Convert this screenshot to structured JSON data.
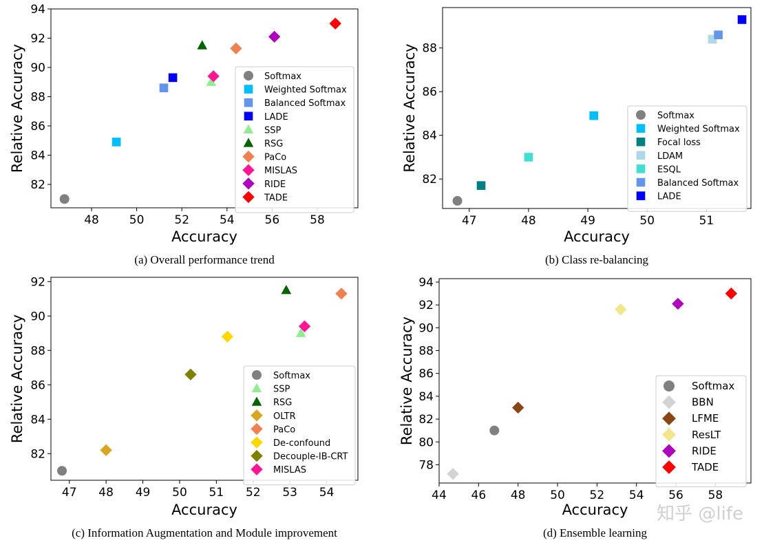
{
  "chart_data": [
    {
      "type": "scatter",
      "caption": "(a) Overall performance trend",
      "xlabel": "Accuracy",
      "ylabel": "Relative Accuracy",
      "xlim": [
        46.2,
        59.8
      ],
      "ylim": [
        80.4,
        94.0
      ],
      "xticks": [
        48,
        50,
        52,
        54,
        56,
        58
      ],
      "yticks": [
        82,
        84,
        86,
        88,
        90,
        92,
        94
      ],
      "legend_position": "lower-right",
      "points": [
        {
          "label": "Softmax",
          "x": 46.8,
          "y": 81.0,
          "marker": "circle",
          "color": "#808080"
        },
        {
          "label": "Weighted Softmax",
          "x": 49.1,
          "y": 84.9,
          "marker": "square",
          "color": "#00bfff"
        },
        {
          "label": "Balanced Softmax",
          "x": 51.2,
          "y": 88.6,
          "marker": "square",
          "color": "#6495ed"
        },
        {
          "label": "LADE",
          "x": 51.6,
          "y": 89.3,
          "marker": "square",
          "color": "#0000ff"
        },
        {
          "label": "SSP",
          "x": 53.3,
          "y": 89.0,
          "marker": "triangle",
          "color": "#90ee90"
        },
        {
          "label": "RSG",
          "x": 52.9,
          "y": 91.5,
          "marker": "triangle",
          "color": "#006400"
        },
        {
          "label": "PaCo",
          "x": 54.4,
          "y": 91.3,
          "marker": "diamond",
          "color": "#f08050"
        },
        {
          "label": "MISLAS",
          "x": 53.4,
          "y": 89.4,
          "marker": "diamond",
          "color": "#ff1493"
        },
        {
          "label": "RIDE",
          "x": 56.1,
          "y": 92.1,
          "marker": "diamond",
          "color": "#b000c0"
        },
        {
          "label": "TADE",
          "x": 58.8,
          "y": 93.0,
          "marker": "diamond",
          "color": "#ff0000"
        }
      ]
    },
    {
      "type": "scatter",
      "caption": "(b) Class re-balancing",
      "xlabel": "Accuracy",
      "ylabel": "Relative Accuracy",
      "xlim": [
        46.55,
        51.75
      ],
      "ylim": [
        80.65,
        89.85
      ],
      "xticks": [
        47,
        48,
        49,
        50,
        51
      ],
      "yticks": [
        82,
        84,
        86,
        88
      ],
      "legend_position": "lower-right",
      "points": [
        {
          "label": "Softmax",
          "x": 46.8,
          "y": 81.0,
          "marker": "circle",
          "color": "#808080"
        },
        {
          "label": "Weighted Softmax",
          "x": 49.1,
          "y": 84.9,
          "marker": "square",
          "color": "#00bfff"
        },
        {
          "label": "Focal loss",
          "x": 47.2,
          "y": 81.7,
          "marker": "square",
          "color": "#008080"
        },
        {
          "label": "LDAM",
          "x": 51.1,
          "y": 88.4,
          "marker": "square",
          "color": "#add8e6"
        },
        {
          "label": "ESQL",
          "x": 48.0,
          "y": 83.0,
          "marker": "square",
          "color": "#40e0d0"
        },
        {
          "label": "Balanced Softmax",
          "x": 51.2,
          "y": 88.6,
          "marker": "square",
          "color": "#6495ed"
        },
        {
          "label": "LADE",
          "x": 51.6,
          "y": 89.3,
          "marker": "square",
          "color": "#0000ff"
        }
      ]
    },
    {
      "type": "scatter",
      "caption": "(c) Information Augmentation and Module improvement",
      "xlabel": "Accuracy",
      "ylabel": "Relative Accuracy",
      "xlim": [
        46.5,
        54.85
      ],
      "ylim": [
        80.45,
        92.25
      ],
      "xticks": [
        47,
        48,
        49,
        50,
        51,
        52,
        53,
        54
      ],
      "yticks": [
        82,
        84,
        86,
        88,
        90,
        92
      ],
      "legend_position": "lower-right",
      "points": [
        {
          "label": "Softmax",
          "x": 46.8,
          "y": 81.0,
          "marker": "circle",
          "color": "#808080"
        },
        {
          "label": "SSP",
          "x": 53.3,
          "y": 89.0,
          "marker": "triangle",
          "color": "#90ee90"
        },
        {
          "label": "RSG",
          "x": 52.9,
          "y": 91.5,
          "marker": "triangle",
          "color": "#006400"
        },
        {
          "label": "OLTR",
          "x": 48.0,
          "y": 82.2,
          "marker": "diamond",
          "color": "#daa520"
        },
        {
          "label": "PaCo",
          "x": 54.4,
          "y": 91.3,
          "marker": "diamond",
          "color": "#f08050"
        },
        {
          "label": "De-confound",
          "x": 51.3,
          "y": 88.8,
          "marker": "diamond",
          "color": "#ffd700"
        },
        {
          "label": "Decouple-IB-CRT",
          "x": 50.3,
          "y": 86.6,
          "marker": "diamond",
          "color": "#808000"
        },
        {
          "label": "MISLAS",
          "x": 53.4,
          "y": 89.4,
          "marker": "diamond",
          "color": "#ff1493"
        }
      ]
    },
    {
      "type": "scatter",
      "caption": "(d) Ensemble learning",
      "xlabel": "Accuracy",
      "ylabel": "Relative Accuracy",
      "xlim": [
        44.0,
        59.8
      ],
      "ylim": [
        76.4,
        94.3
      ],
      "xticks": [
        44,
        46,
        48,
        50,
        52,
        54,
        56,
        58
      ],
      "yticks": [
        78,
        80,
        82,
        84,
        86,
        88,
        90,
        92,
        94
      ],
      "legend_position": "lower-right",
      "points": [
        {
          "label": "Softmax",
          "x": 46.8,
          "y": 81.0,
          "marker": "circle",
          "color": "#808080"
        },
        {
          "label": "BBN",
          "x": 44.7,
          "y": 77.2,
          "marker": "diamond",
          "color": "#d3d3d3"
        },
        {
          "label": "LFME",
          "x": 48.0,
          "y": 83.0,
          "marker": "diamond",
          "color": "#8b4513"
        },
        {
          "label": "ResLT",
          "x": 53.2,
          "y": 91.6,
          "marker": "diamond",
          "color": "#f0e68c"
        },
        {
          "label": "RIDE",
          "x": 56.1,
          "y": 92.1,
          "marker": "diamond",
          "color": "#b000c0"
        },
        {
          "label": "TADE",
          "x": 58.8,
          "y": 93.0,
          "marker": "diamond",
          "color": "#ff0000"
        }
      ]
    }
  ],
  "watermark": "知乎 @life"
}
